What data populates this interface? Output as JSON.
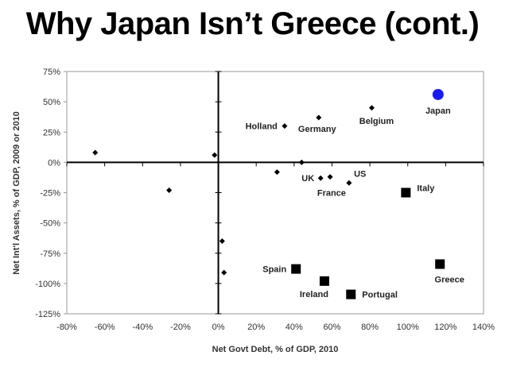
{
  "page": {
    "title": "Why Japan Isn’t Greece (cont.)"
  },
  "chart_data": {
    "type": "scatter",
    "title": "Why Japan Isn’t Greece (cont.)",
    "xlabel": "Net Govt Debt, % of GDP, 2010",
    "ylabel": "Net Int'l Assets, % of GDP, 2009 or 2010",
    "xlim": [
      -80,
      140
    ],
    "ylim": [
      -125,
      75
    ],
    "x_ticks": [
      -80,
      -60,
      -40,
      -20,
      0,
      20,
      40,
      60,
      80,
      100,
      120,
      140
    ],
    "x_tick_labels": [
      "-80%",
      "-60%",
      "-40%",
      "-20%",
      "0%",
      "20%",
      "40%",
      "60%",
      "80%",
      "100%",
      "120%",
      "140%"
    ],
    "y_ticks": [
      75,
      50,
      25,
      0,
      -25,
      -50,
      -75,
      -100,
      -125
    ],
    "y_tick_labels": [
      "75%",
      "50%",
      "25%",
      "0%",
      "-25%",
      "-50%",
      "-75%",
      "-100%",
      "-125%"
    ],
    "grid": false,
    "colors": {
      "diamond": "#000000",
      "square": "#000000",
      "highlight": "#1a1aff"
    },
    "points": [
      {
        "label": "Japan",
        "x": 116,
        "y": 56,
        "marker": "circle"
      },
      {
        "label": "Belgium",
        "x": 81,
        "y": 45,
        "marker": "diamond"
      },
      {
        "label": "Germany",
        "x": 53,
        "y": 37,
        "marker": "diamond"
      },
      {
        "label": "Holland",
        "x": 35,
        "y": 30,
        "marker": "diamond"
      },
      {
        "label": "",
        "x": -65,
        "y": 8,
        "marker": "diamond"
      },
      {
        "label": "",
        "x": -2,
        "y": 6,
        "marker": "diamond"
      },
      {
        "label": "",
        "x": 44,
        "y": 0,
        "marker": "diamond"
      },
      {
        "label": "",
        "x": 31,
        "y": -8,
        "marker": "diamond"
      },
      {
        "label": "UK",
        "x": 54,
        "y": -13,
        "marker": "diamond"
      },
      {
        "label": "US",
        "x": 59,
        "y": -12,
        "marker": "diamond"
      },
      {
        "label": "France",
        "x": 69,
        "y": -17,
        "marker": "diamond"
      },
      {
        "label": "",
        "x": -26,
        "y": -23,
        "marker": "diamond"
      },
      {
        "label": "",
        "x": 2,
        "y": -65,
        "marker": "diamond"
      },
      {
        "label": "",
        "x": 3,
        "y": -91,
        "marker": "diamond"
      },
      {
        "label": "Italy",
        "x": 99,
        "y": -25,
        "marker": "square"
      },
      {
        "label": "Greece",
        "x": 117,
        "y": -84,
        "marker": "square"
      },
      {
        "label": "Spain",
        "x": 41,
        "y": -88,
        "marker": "square"
      },
      {
        "label": "Ireland",
        "x": 56,
        "y": -98,
        "marker": "square"
      },
      {
        "label": "Portugal",
        "x": 70,
        "y": -109,
        "marker": "square"
      }
    ]
  }
}
